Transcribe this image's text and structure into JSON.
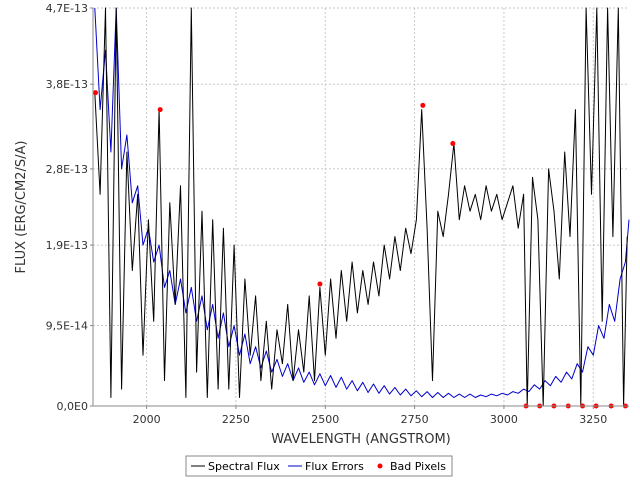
{
  "chart_data": {
    "type": "line",
    "title": "",
    "xlabel": "WAVELENGTH (ANGSTROM)",
    "ylabel": "FLUX (ERG/CM2/S/A)",
    "xlim": [
      1850,
      3350
    ],
    "ylim": [
      0,
      4.7e-13
    ],
    "x_ticks": [
      2000,
      2250,
      2500,
      2750,
      3000,
      3250
    ],
    "x_tick_labels": [
      "2000",
      "2250",
      "2500",
      "2750",
      "3000",
      "3250"
    ],
    "y_ticks": [
      0,
      9.5e-14,
      1.9e-13,
      2.8e-13,
      3.8e-13,
      4.7e-13
    ],
    "y_tick_labels": [
      "0,0E0",
      "9,5E-14",
      "1,9E-13",
      "2,8E-13",
      "3,8E-13",
      "4,7E-13"
    ],
    "grid": true,
    "legend_position": "bottom-center",
    "series": [
      {
        "name": "Spectral Flux",
        "color": "#000000",
        "x": [
          1855,
          1870,
          1885,
          1900,
          1915,
          1930,
          1945,
          1960,
          1975,
          1990,
          2005,
          2020,
          2035,
          2050,
          2065,
          2080,
          2095,
          2110,
          2125,
          2140,
          2155,
          2170,
          2185,
          2200,
          2215,
          2230,
          2245,
          2260,
          2275,
          2290,
          2305,
          2320,
          2335,
          2350,
          2365,
          2380,
          2395,
          2410,
          2425,
          2440,
          2455,
          2470,
          2485,
          2500,
          2515,
          2530,
          2545,
          2560,
          2575,
          2590,
          2605,
          2620,
          2635,
          2650,
          2665,
          2680,
          2695,
          2710,
          2725,
          2740,
          2755,
          2770,
          2785,
          2800,
          2815,
          2830,
          2845,
          2860,
          2875,
          2890,
          2905,
          2920,
          2935,
          2950,
          2965,
          2980,
          2995,
          3010,
          3025,
          3040,
          3055,
          3065,
          3080,
          3095,
          3110,
          3125,
          3140,
          3155,
          3170,
          3185,
          3200,
          3215,
          3230,
          3245,
          3260,
          3275,
          3290,
          3305,
          3320,
          3335,
          3345
        ],
        "y": [
          3.7e-13,
          2.5e-13,
          4.7e-13,
          1e-14,
          4.7e-13,
          2e-14,
          3e-13,
          1.6e-13,
          2.5e-13,
          6e-14,
          2.2e-13,
          1e-13,
          3.5e-13,
          3e-14,
          2.4e-13,
          1.2e-13,
          2.6e-13,
          1e-14,
          4.7e-13,
          4e-14,
          2.3e-13,
          1e-14,
          2.2e-13,
          2e-14,
          2.1e-13,
          2e-14,
          1.9e-13,
          1e-14,
          1.5e-13,
          6e-14,
          1.3e-13,
          3e-14,
          1e-13,
          2e-14,
          9e-14,
          5e-14,
          1.2e-13,
          3e-14,
          9e-14,
          4e-14,
          1.3e-13,
          3e-14,
          1.4e-13,
          6e-14,
          1.5e-13,
          8e-14,
          1.6e-13,
          1e-13,
          1.7e-13,
          1.1e-13,
          1.6e-13,
          1.2e-13,
          1.7e-13,
          1.3e-13,
          1.9e-13,
          1.5e-13,
          2e-13,
          1.6e-13,
          2.1e-13,
          1.8e-13,
          2.2e-13,
          3.5e-13,
          2.1e-13,
          3e-14,
          2.3e-13,
          2e-13,
          2.5e-13,
          3.1e-13,
          2.2e-13,
          2.6e-13,
          2.3e-13,
          2.5e-13,
          2.2e-13,
          2.6e-13,
          2.3e-13,
          2.5e-13,
          2.2e-13,
          2.4e-13,
          2.6e-13,
          2.1e-13,
          2.5e-13,
          0.0,
          2.7e-13,
          2.2e-13,
          0.0,
          2.8e-13,
          2.3e-13,
          1.5e-13,
          3e-13,
          2e-13,
          3.5e-13,
          0.0,
          4.7e-13,
          2.5e-13,
          4.7e-13,
          1e-13,
          4.7e-13,
          2e-13,
          4.7e-13,
          0.0,
          2e-13
        ]
      },
      {
        "name": "Flux Errors",
        "color": "#0000cc",
        "x": [
          1855,
          1870,
          1885,
          1900,
          1915,
          1930,
          1945,
          1960,
          1975,
          1990,
          2005,
          2020,
          2035,
          2050,
          2065,
          2080,
          2095,
          2110,
          2125,
          2140,
          2155,
          2170,
          2185,
          2200,
          2215,
          2230,
          2245,
          2260,
          2275,
          2290,
          2305,
          2320,
          2335,
          2350,
          2365,
          2380,
          2395,
          2410,
          2425,
          2440,
          2455,
          2470,
          2485,
          2500,
          2515,
          2530,
          2545,
          2560,
          2575,
          2590,
          2605,
          2620,
          2635,
          2650,
          2665,
          2680,
          2695,
          2710,
          2725,
          2740,
          2755,
          2770,
          2785,
          2800,
          2815,
          2830,
          2845,
          2860,
          2875,
          2890,
          2905,
          2920,
          2935,
          2950,
          2965,
          2980,
          2995,
          3010,
          3025,
          3040,
          3055,
          3070,
          3085,
          3100,
          3115,
          3130,
          3145,
          3160,
          3175,
          3190,
          3205,
          3220,
          3235,
          3250,
          3265,
          3280,
          3295,
          3310,
          3325,
          3340,
          3350
        ],
        "y": [
          4.7e-13,
          3.5e-13,
          4.2e-13,
          3e-13,
          4.7e-13,
          2.8e-13,
          3.2e-13,
          2.4e-13,
          2.6e-13,
          1.9e-13,
          2.1e-13,
          1.7e-13,
          1.9e-13,
          1.4e-13,
          1.6e-13,
          1.2e-13,
          1.5e-13,
          1.1e-13,
          1.4e-13,
          1e-13,
          1.3e-13,
          9e-14,
          1.2e-13,
          8e-14,
          1.1e-13,
          7e-14,
          9.5e-14,
          6e-14,
          8.5e-14,
          5e-14,
          7e-14,
          4.5e-14,
          6.5e-14,
          4e-14,
          5.5e-14,
          3.5e-14,
          5e-14,
          3e-14,
          4.5e-14,
          2.8e-14,
          4e-14,
          2.5e-14,
          3.8e-14,
          2.4e-14,
          3.6e-14,
          2.2e-14,
          3.4e-14,
          2e-14,
          3e-14,
          1.8e-14,
          2.8e-14,
          1.6e-14,
          2.6e-14,
          1.5e-14,
          2.4e-14,
          1.4e-14,
          2.2e-14,
          1.3e-14,
          2e-14,
          1.2e-14,
          1.8e-14,
          1.1e-14,
          1.7e-14,
          1e-14,
          1.6e-14,
          1e-14,
          1.5e-14,
          1e-14,
          1.4e-14,
          1e-14,
          1.4e-14,
          1e-14,
          1.3e-14,
          1.1e-14,
          1.4e-14,
          1.2e-14,
          1.5e-14,
          1.3e-14,
          1.7e-14,
          1.5e-14,
          2e-14,
          1.7e-14,
          2.5e-14,
          2e-14,
          3e-14,
          2.4e-14,
          3.5e-14,
          2.8e-14,
          4e-14,
          3.2e-14,
          5e-14,
          4e-14,
          7e-14,
          6e-14,
          9.5e-14,
          8e-14,
          1.2e-13,
          1e-13,
          1.5e-13,
          1.7e-13,
          2.2e-13
        ]
      },
      {
        "name": "Bad Pixels",
        "color": "#ff0000",
        "marker": "point",
        "x": [
          1857,
          2038,
          2485,
          2773,
          2857,
          3062,
          3100,
          3140,
          3180,
          3220,
          3258,
          3300,
          3340
        ],
        "y": [
          3.7e-13,
          3.5e-13,
          1.44e-13,
          3.55e-13,
          3.1e-13,
          0,
          0,
          0,
          0,
          0,
          0,
          0,
          0
        ]
      }
    ]
  }
}
